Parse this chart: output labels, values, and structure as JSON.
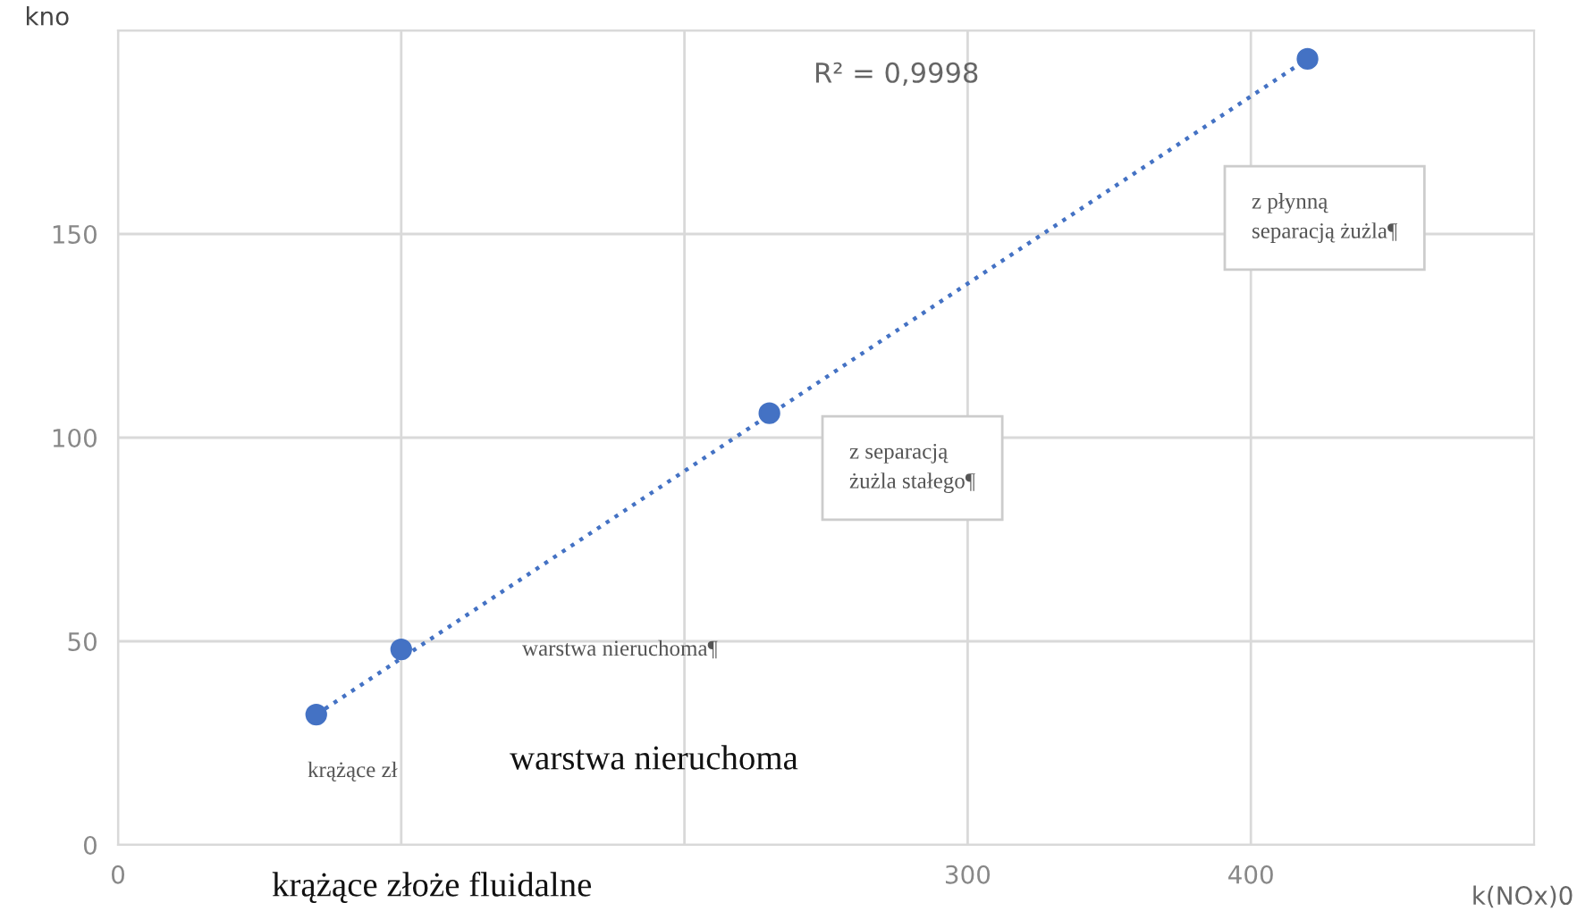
{
  "chart_data": {
    "type": "scatter",
    "xlabel": "k(NOx)0",
    "ylabel": "kno",
    "x": [
      70,
      100,
      230,
      420
    ],
    "series": [
      {
        "color": "#4472c4",
        "marker": "circle",
        "values": [
          32,
          48,
          106,
          193
        ]
      },
      {
        "type": "line",
        "color": "#4472c4",
        "line_style": "dotted",
        "marker": "none",
        "x": [
          70,
          420
        ],
        "values": [
          32,
          193
        ]
      }
    ],
    "xlim": [
      0,
      500
    ],
    "xticks": [
      0,
      {
        "value": 100,
        "label": null
      },
      {
        "value": 200,
        "label": null
      },
      300,
      400
    ],
    "ylim": [
      0,
      200
    ],
    "yticks": [
      0,
      50,
      100,
      150,
      {
        "value": 200,
        "label": null
      }
    ],
    "grid": true,
    "annotations": [
      "R² = 0,9998",
      "z płynną\nseparacją żużla¶",
      "z separacją\nżużla stałego¶",
      "warstwa nieruchoma¶",
      "krążące zł",
      "warstwa nieruchoma",
      "krążące złoże fluidalne"
    ]
  }
}
